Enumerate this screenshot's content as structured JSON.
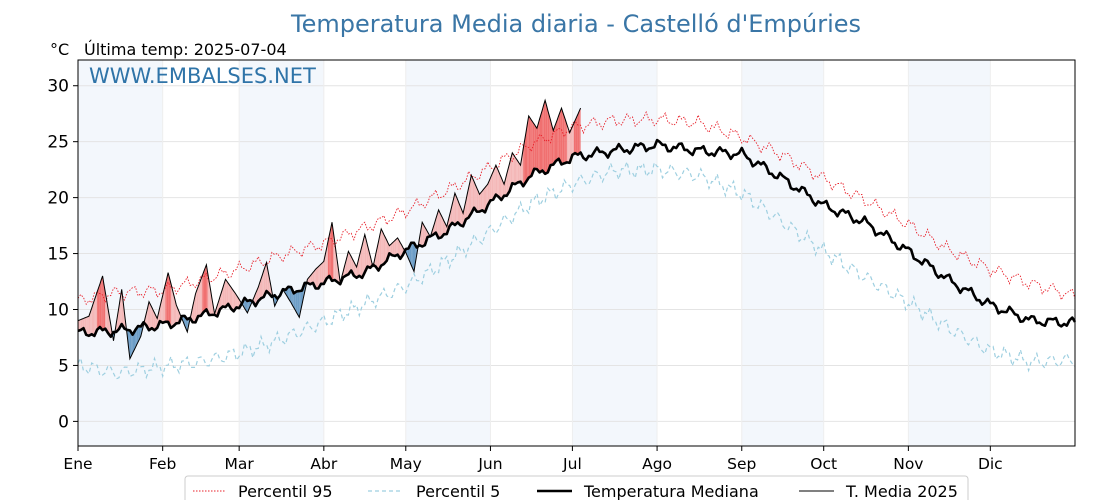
{
  "chart_data": {
    "type": "line",
    "title": "Temperatura Media diaria - Castelló d'Empúries",
    "unit_label": "°C",
    "last_update_text": "Última temp: 2025-07-04",
    "watermark": "WWW.EMBALSES.NET",
    "ylim": [
      -2.2,
      32.3
    ],
    "yticks": [
      0,
      5,
      10,
      15,
      20,
      25,
      30
    ],
    "xlim": [
      1,
      366
    ],
    "month_labels": [
      "Ene",
      "Feb",
      "Mar",
      "Abr",
      "May",
      "Jun",
      "Jul",
      "Ago",
      "Sep",
      "Oct",
      "Nov",
      "Dic"
    ],
    "month_start_days": [
      1,
      32,
      60,
      91,
      121,
      152,
      182,
      213,
      244,
      274,
      305,
      335
    ],
    "grid": true,
    "legend_position": "bottom",
    "colors": {
      "p95": "#e8202a",
      "p5": "#9ecfe0",
      "median": "#000000",
      "current": "#000000",
      "above_fill": "#f4b8b8",
      "above_fill_strong": "#f07070",
      "below_fill": "#6d9ec7",
      "band_shade": "#f3f7fc"
    },
    "series": [
      {
        "name": "Percentil 95",
        "style": "dotted-red",
        "x": [
          1,
          15,
          32,
          46,
          60,
          75,
          91,
          106,
          121,
          136,
          152,
          167,
          182,
          197,
          213,
          228,
          244,
          259,
          274,
          289,
          305,
          320,
          335,
          350,
          366
        ],
        "y": [
          10.8,
          11.5,
          11.7,
          12.6,
          13.6,
          14.8,
          15.9,
          17.3,
          18.8,
          20.6,
          22.7,
          24.8,
          26.3,
          26.9,
          27.0,
          26.7,
          25.4,
          23.8,
          21.7,
          19.8,
          17.6,
          15.3,
          13.6,
          12.3,
          11.2
        ]
      },
      {
        "name": "Percentil 5",
        "style": "dashed-lightblue",
        "x": [
          1,
          15,
          32,
          46,
          60,
          75,
          91,
          106,
          121,
          136,
          152,
          167,
          182,
          197,
          213,
          228,
          244,
          259,
          274,
          289,
          305,
          320,
          335,
          350,
          366
        ],
        "y": [
          5.0,
          4.3,
          4.9,
          5.3,
          6.1,
          7.3,
          8.9,
          10.5,
          12.1,
          14.3,
          17.0,
          19.5,
          21.2,
          22.4,
          22.5,
          22.0,
          20.4,
          17.8,
          15.2,
          12.9,
          10.6,
          8.3,
          6.3,
          5.3,
          5.5
        ]
      },
      {
        "name": "Temperatura Mediana",
        "style": "thick-black",
        "x": [
          1,
          15,
          32,
          46,
          60,
          75,
          91,
          106,
          121,
          136,
          152,
          167,
          182,
          197,
          213,
          228,
          244,
          259,
          274,
          289,
          305,
          320,
          335,
          350,
          366
        ],
        "y": [
          7.9,
          8.1,
          8.6,
          9.4,
          10.4,
          11.5,
          12.4,
          13.3,
          15.3,
          17.0,
          19.5,
          22.0,
          23.6,
          24.2,
          24.7,
          24.2,
          23.9,
          21.7,
          19.3,
          17.8,
          15.2,
          12.6,
          10.4,
          9.0,
          8.8
        ]
      },
      {
        "name": "T. Media 2025",
        "style": "thin-black",
        "x": [
          1,
          5,
          10,
          14,
          17,
          20,
          24,
          27,
          30,
          34,
          37,
          41,
          44,
          48,
          51,
          55,
          59,
          63,
          67,
          70,
          73,
          76,
          79,
          82,
          85,
          88,
          91,
          94,
          97,
          100,
          103,
          106,
          109,
          112,
          115,
          118,
          121,
          124,
          127,
          130,
          133,
          136,
          139,
          142,
          145,
          148,
          151,
          154,
          157,
          160,
          163,
          166,
          169,
          172,
          175,
          178,
          181,
          185
        ],
        "y": [
          9.0,
          9.4,
          13.0,
          7.2,
          11.8,
          5.6,
          7.6,
          10.7,
          9.2,
          13.3,
          10.4,
          8.0,
          11.4,
          14.0,
          9.6,
          12.7,
          11.3,
          9.7,
          12.0,
          14.2,
          10.3,
          11.8,
          10.6,
          9.3,
          12.7,
          13.6,
          14.3,
          17.8,
          12.4,
          15.2,
          13.8,
          16.7,
          13.8,
          17.2,
          15.7,
          16.4,
          15.1,
          13.4,
          17.8,
          16.5,
          18.9,
          17.4,
          20.4,
          18.6,
          22.0,
          20.3,
          21.2,
          22.9,
          21.2,
          24.0,
          22.9,
          27.3,
          26.2,
          28.7,
          26.0,
          28.0,
          25.8,
          28.0
        ]
      }
    ]
  }
}
